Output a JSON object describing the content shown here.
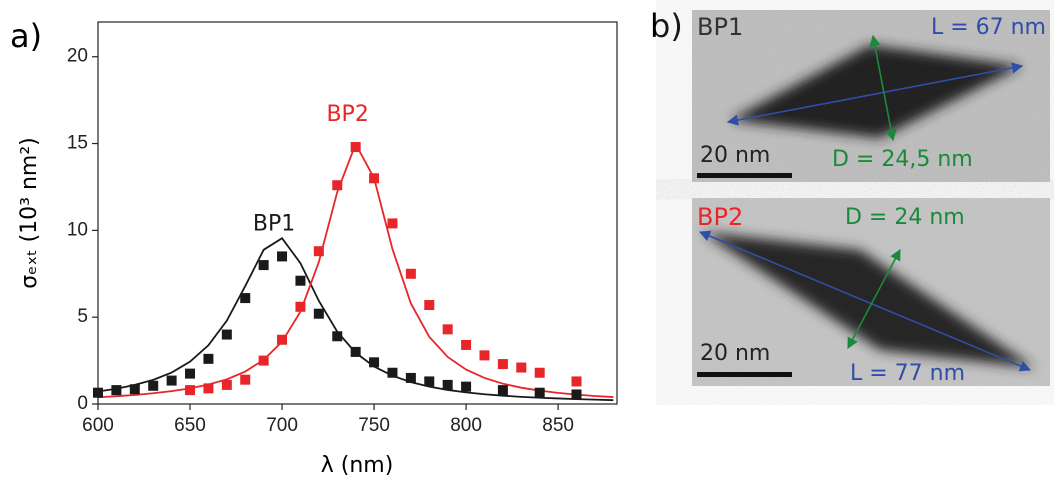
{
  "chart_data": {
    "type": "scatter",
    "panel_label": "a)",
    "x_label": "λ (nm)",
    "y_label": "σₑₓₜ (10³ nm²)",
    "xlim": [
      600,
      882
    ],
    "xticks": [
      600,
      650,
      700,
      750,
      800,
      850
    ],
    "ylim": [
      0,
      22
    ],
    "yticks": [
      0,
      5,
      10,
      15,
      20
    ],
    "series": [
      {
        "name": "BP1",
        "color": "#1a1a1a",
        "x": [
          600,
          610,
          620,
          630,
          640,
          650,
          660,
          670,
          680,
          690,
          700,
          710,
          720,
          730,
          740,
          750,
          760,
          770,
          780,
          790,
          800,
          820,
          840,
          860
        ],
        "values": [
          0.65,
          0.8,
          0.85,
          1.05,
          1.35,
          1.75,
          2.6,
          4.0,
          6.1,
          8.0,
          8.5,
          7.1,
          5.2,
          3.9,
          3.0,
          2.4,
          1.8,
          1.5,
          1.3,
          1.1,
          1.0,
          0.8,
          0.65,
          0.55
        ]
      },
      {
        "name": "BP2",
        "color": "#e8262a",
        "x": [
          650,
          660,
          670,
          680,
          690,
          700,
          710,
          720,
          730,
          740,
          750,
          760,
          770,
          780,
          790,
          800,
          810,
          820,
          830,
          840,
          860
        ],
        "values": [
          0.8,
          0.9,
          1.1,
          1.4,
          2.5,
          3.7,
          5.6,
          8.8,
          12.6,
          14.8,
          13.0,
          10.4,
          7.5,
          5.7,
          4.3,
          3.4,
          2.8,
          2.3,
          2.1,
          1.8,
          1.3
        ]
      }
    ],
    "fits": [
      {
        "color": "#1a1a1a",
        "x": [
          600,
          610,
          620,
          630,
          640,
          650,
          660,
          670,
          680,
          690,
          700,
          710,
          720,
          730,
          740,
          750,
          760,
          770,
          780,
          790,
          800,
          810,
          820,
          830,
          840,
          850,
          860,
          870,
          880
        ],
        "values": [
          0.72,
          0.88,
          1.1,
          1.39,
          1.81,
          2.44,
          3.38,
          4.8,
          6.79,
          8.88,
          9.55,
          8.11,
          5.94,
          4.16,
          2.95,
          2.16,
          1.63,
          1.26,
          1.0,
          0.81,
          0.67,
          0.56,
          0.48,
          0.41,
          0.36,
          0.32,
          0.28,
          0.25,
          0.22
        ]
      },
      {
        "color": "#e8262a",
        "x": [
          600,
          610,
          620,
          630,
          640,
          650,
          660,
          670,
          680,
          690,
          700,
          710,
          720,
          730,
          740,
          750,
          760,
          770,
          780,
          790,
          800,
          810,
          820,
          830,
          840,
          850,
          860,
          870,
          880
        ],
        "values": [
          0.39,
          0.45,
          0.52,
          0.62,
          0.74,
          0.9,
          1.12,
          1.42,
          1.87,
          2.54,
          3.59,
          5.32,
          8.18,
          12.21,
          14.97,
          13.01,
          8.92,
          5.79,
          3.87,
          2.71,
          1.98,
          1.5,
          1.17,
          0.94,
          0.77,
          0.64,
          0.54,
          0.46,
          0.4
        ]
      }
    ]
  },
  "panel_b": {
    "label": "b)",
    "images": [
      {
        "name": "BP1",
        "length": "L = 67 nm",
        "diameter": "D = 24,5 nm",
        "scale": "20 nm"
      },
      {
        "name": "BP2",
        "length": "L = 77 nm",
        "diameter": "D = 24 nm",
        "scale": "20 nm"
      }
    ]
  }
}
